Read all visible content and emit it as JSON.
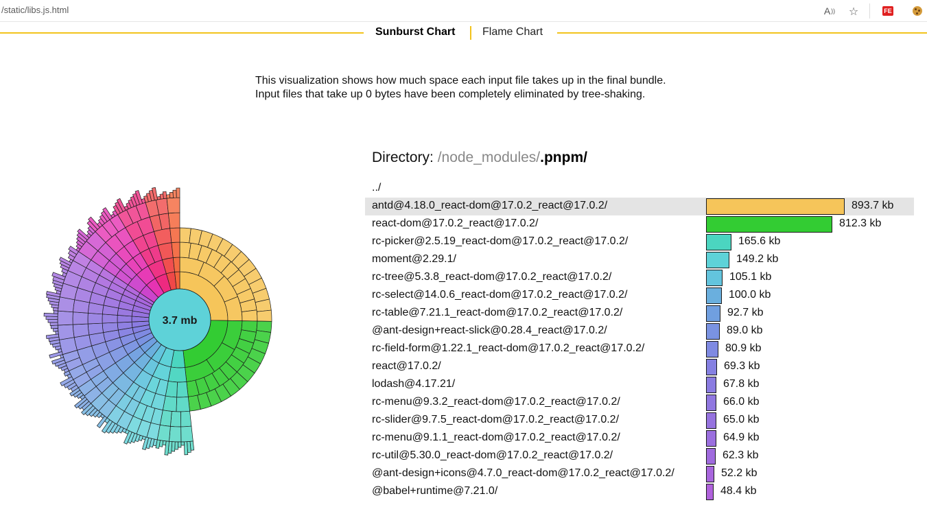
{
  "browser": {
    "url": "/static/libs.js.html",
    "read_aloud_glyph": "A",
    "favorite_glyph": "☆",
    "extension_label": "FE"
  },
  "tabs": [
    {
      "label": "Sunburst Chart",
      "active": true
    },
    {
      "label": "Flame Chart",
      "active": false
    }
  ],
  "description": "This visualization shows how much space each input file takes up in the final bundle. Input files that take up 0 bytes have been completely eliminated by tree-shaking.",
  "chart": {
    "center_label": "3.7 mb",
    "total_kb": 3789
  },
  "directory": {
    "label": "Directory: ",
    "path": "/node_modules/",
    "current": ".pnpm/"
  },
  "parent_link": "../",
  "files": [
    {
      "name": "antd@4.18.0_react-dom@17.0.2_react@17.0.2/",
      "size": "893.7 kb",
      "kb": 893.7,
      "color": "#f6c55a"
    },
    {
      "name": "react-dom@17.0.2_react@17.0.2/",
      "size": "812.3 kb",
      "kb": 812.3,
      "color": "#33cc33"
    },
    {
      "name": "rc-picker@2.5.19_react-dom@17.0.2_react@17.0.2/",
      "size": "165.6 kb",
      "kb": 165.6,
      "color": "#4bd5c0"
    },
    {
      "name": "moment@2.29.1/",
      "size": "149.2 kb",
      "kb": 149.2,
      "color": "#5ed2d8"
    },
    {
      "name": "rc-tree@5.3.8_react-dom@17.0.2_react@17.0.2/",
      "size": "105.1 kb",
      "kb": 105.1,
      "color": "#63c4dd"
    },
    {
      "name": "rc-select@14.0.6_react-dom@17.0.2_react@17.0.2/",
      "size": "100.0 kb",
      "kb": 100.0,
      "color": "#6aafde"
    },
    {
      "name": "rc-table@7.21.1_react-dom@17.0.2_react@17.0.2/",
      "size": "92.7 kb",
      "kb": 92.7,
      "color": "#709fe0"
    },
    {
      "name": "@ant-design+react-slick@0.28.4_react@17.0.2/",
      "size": "89.0 kb",
      "kb": 89.0,
      "color": "#7a93e2"
    },
    {
      "name": "rc-field-form@1.22.1_react-dom@17.0.2_react@17.0.2/",
      "size": "80.9 kb",
      "kb": 80.9,
      "color": "#7f8ae2"
    },
    {
      "name": "react@17.0.2/",
      "size": "69.3 kb",
      "kb": 69.3,
      "color": "#8580e2"
    },
    {
      "name": "lodash@4.17.21/",
      "size": "67.8 kb",
      "kb": 67.8,
      "color": "#8a7be1"
    },
    {
      "name": "rc-menu@9.3.2_react-dom@17.0.2_react@17.0.2/",
      "size": "66.0 kb",
      "kb": 66.0,
      "color": "#9077e0"
    },
    {
      "name": "rc-slider@9.7.5_react-dom@17.0.2_react@17.0.2/",
      "size": "65.0 kb",
      "kb": 65.0,
      "color": "#9673df"
    },
    {
      "name": "rc-menu@9.1.1_react-dom@17.0.2_react@17.0.2/",
      "size": "64.9 kb",
      "kb": 64.9,
      "color": "#9b6fdf"
    },
    {
      "name": "rc-util@5.30.0_react-dom@17.0.2_react@17.0.2/",
      "size": "62.3 kb",
      "kb": 62.3,
      "color": "#a06bde"
    },
    {
      "name": "@ant-design+icons@4.7.0_react-dom@17.0.2_react@17.0.2/",
      "size": "52.2 kb",
      "kb": 52.2,
      "color": "#a866dd"
    },
    {
      "name": "@babel+runtime@7.21.0/",
      "size": "48.4 kb",
      "kb": 48.4,
      "color": "#b062dc"
    }
  ],
  "other_segments": [
    {
      "kb": 120,
      "color": "#cc44cc"
    },
    {
      "kb": 130,
      "color": "#e633b3"
    },
    {
      "kb": 140,
      "color": "#ee2a80"
    },
    {
      "kb": 100,
      "color": "#f04848"
    },
    {
      "kb": 60,
      "color": "#f4653a"
    }
  ],
  "colors": {
    "accent": "#f2c31c",
    "hover_row": "#e4e4e4",
    "center": "#5ed2d8"
  }
}
